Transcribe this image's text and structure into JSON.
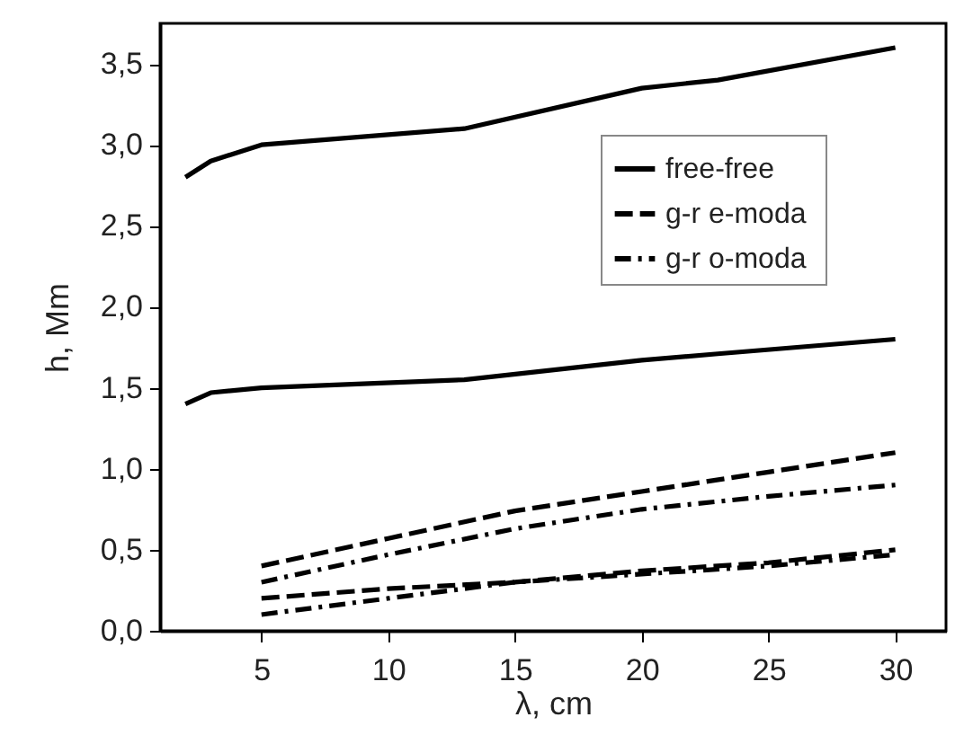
{
  "chart_data": {
    "type": "line",
    "xlabel": "λ, cm",
    "ylabel": "h, Mm",
    "xlim": [
      1,
      32
    ],
    "xticks": [
      5,
      10,
      15,
      20,
      25,
      30
    ],
    "ylim": [
      0,
      3.75
    ],
    "yticks": [
      {
        "value": 0,
        "label": "0,0"
      },
      {
        "value": 0.5,
        "label": "0,5"
      },
      {
        "value": 1,
        "label": "1,0"
      },
      {
        "value": 1.5,
        "label": "1,5"
      },
      {
        "value": 2,
        "label": "2,0"
      },
      {
        "value": 2.5,
        "label": "2,5"
      },
      {
        "value": 3,
        "label": "3,0"
      },
      {
        "value": 3.5,
        "label": "3,5"
      }
    ],
    "legend": "top right",
    "grid": false,
    "marker": "none",
    "series": [
      {
        "name": "free-free",
        "color": "#000000",
        "line_style": "solid",
        "x": [
          2,
          3,
          5,
          13,
          20,
          23,
          30
        ],
        "values": [
          2.8,
          2.9,
          3.0,
          3.1,
          3.35,
          3.4,
          3.6
        ]
      },
      {
        "color": "#000000",
        "line_style": "solid",
        "x": [
          2,
          3,
          5,
          13,
          20,
          23,
          30
        ],
        "values": [
          1.4,
          1.47,
          1.5,
          1.55,
          1.67,
          1.71,
          1.8
        ]
      },
      {
        "name": "g-r  e-moda",
        "color": "#000000",
        "line_style": "dashed",
        "x": [
          5,
          10,
          15,
          20,
          25,
          30
        ],
        "values": [
          0.4,
          0.57,
          0.74,
          0.86,
          0.98,
          1.1
        ]
      },
      {
        "color": "#000000",
        "line_style": "dashed",
        "x": [
          5,
          10,
          15,
          20,
          25,
          30
        ],
        "values": [
          0.2,
          0.26,
          0.3,
          0.37,
          0.42,
          0.5
        ]
      },
      {
        "name": "g-r  o-moda",
        "color": "#000000",
        "line_style": "dashdot",
        "x": [
          5,
          10,
          15,
          20,
          25,
          30
        ],
        "values": [
          0.3,
          0.47,
          0.63,
          0.75,
          0.83,
          0.9
        ]
      },
      {
        "color": "#000000",
        "line_style": "dashdot",
        "x": [
          5,
          10,
          15,
          20,
          25,
          30
        ],
        "values": [
          0.1,
          0.2,
          0.3,
          0.35,
          0.4,
          0.47
        ]
      }
    ]
  }
}
